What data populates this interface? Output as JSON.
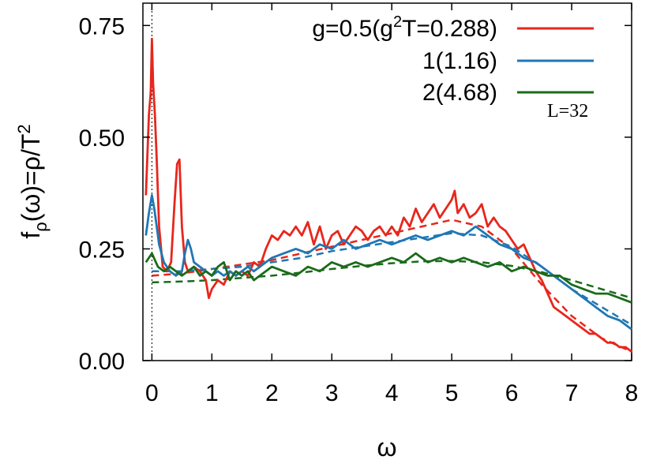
{
  "chart_data": {
    "type": "line",
    "xlabel": "ω",
    "ylabel": "f_ρ(ω)=ρ/T^2",
    "xlim": [
      -0.15,
      8.0
    ],
    "ylim": [
      0.0,
      0.8
    ],
    "xticks": [
      "0",
      "1",
      "2",
      "3",
      "4",
      "5",
      "6",
      "7",
      "8"
    ],
    "yticks": [
      "0.00",
      "0.25",
      "0.50",
      "0.75"
    ],
    "annotation": "L=32",
    "legend_position": "top-right",
    "grid": false,
    "reference_line": {
      "x": 0,
      "style": "dotted"
    },
    "series": [
      {
        "name": "g=0.5(g²T=0.288)",
        "color": "#e8261c",
        "x": [
          -0.1,
          -0.05,
          -0.02,
          0.0,
          0.02,
          0.05,
          0.08,
          0.12,
          0.18,
          0.25,
          0.32,
          0.38,
          0.42,
          0.46,
          0.5,
          0.55,
          0.6,
          0.7,
          0.8,
          0.9,
          0.95,
          1.0,
          1.1,
          1.2,
          1.3,
          1.4,
          1.5,
          1.6,
          1.7,
          1.8,
          1.9,
          2.0,
          2.1,
          2.2,
          2.3,
          2.4,
          2.5,
          2.6,
          2.7,
          2.8,
          2.9,
          3.0,
          3.1,
          3.2,
          3.3,
          3.4,
          3.5,
          3.6,
          3.7,
          3.8,
          3.9,
          4.0,
          4.1,
          4.2,
          4.3,
          4.4,
          4.5,
          4.6,
          4.7,
          4.8,
          4.9,
          5.0,
          5.05,
          5.1,
          5.2,
          5.3,
          5.4,
          5.5,
          5.6,
          5.7,
          5.8,
          5.9,
          6.0,
          6.1,
          6.2,
          6.3,
          6.4,
          6.5,
          6.6,
          6.7,
          6.8,
          6.9,
          7.0,
          7.1,
          7.2,
          7.3,
          7.4,
          7.5,
          7.6,
          7.7,
          7.8,
          7.9,
          8.0
        ],
        "values": [
          0.37,
          0.55,
          0.6,
          0.72,
          0.62,
          0.55,
          0.45,
          0.3,
          0.21,
          0.2,
          0.22,
          0.36,
          0.44,
          0.45,
          0.3,
          0.22,
          0.2,
          0.21,
          0.2,
          0.18,
          0.14,
          0.16,
          0.18,
          0.17,
          0.2,
          0.19,
          0.2,
          0.19,
          0.22,
          0.21,
          0.25,
          0.28,
          0.27,
          0.29,
          0.28,
          0.3,
          0.28,
          0.31,
          0.26,
          0.3,
          0.25,
          0.28,
          0.29,
          0.26,
          0.28,
          0.3,
          0.29,
          0.27,
          0.29,
          0.3,
          0.28,
          0.3,
          0.28,
          0.32,
          0.3,
          0.34,
          0.31,
          0.33,
          0.35,
          0.32,
          0.34,
          0.36,
          0.38,
          0.33,
          0.35,
          0.32,
          0.33,
          0.35,
          0.3,
          0.32,
          0.3,
          0.29,
          0.27,
          0.25,
          0.26,
          0.23,
          0.2,
          0.18,
          0.15,
          0.12,
          0.11,
          0.1,
          0.09,
          0.08,
          0.07,
          0.06,
          0.06,
          0.05,
          0.04,
          0.04,
          0.03,
          0.03,
          0.02
        ]
      },
      {
        "name": "1(1.16)",
        "color": "#1f77b4",
        "x": [
          -0.1,
          -0.05,
          0.0,
          0.04,
          0.08,
          0.12,
          0.2,
          0.3,
          0.4,
          0.5,
          0.55,
          0.6,
          0.65,
          0.7,
          0.8,
          0.9,
          1.0,
          1.1,
          1.2,
          1.3,
          1.4,
          1.5,
          1.6,
          1.7,
          1.8,
          1.9,
          2.0,
          2.2,
          2.4,
          2.6,
          2.8,
          3.0,
          3.2,
          3.4,
          3.6,
          3.8,
          4.0,
          4.2,
          4.4,
          4.6,
          4.8,
          5.0,
          5.2,
          5.4,
          5.5,
          5.6,
          5.8,
          6.0,
          6.2,
          6.4,
          6.6,
          6.8,
          7.0,
          7.2,
          7.4,
          7.6,
          7.8,
          8.0
        ],
        "values": [
          0.28,
          0.33,
          0.37,
          0.34,
          0.3,
          0.26,
          0.22,
          0.2,
          0.19,
          0.2,
          0.24,
          0.27,
          0.25,
          0.22,
          0.21,
          0.2,
          0.19,
          0.2,
          0.19,
          0.2,
          0.19,
          0.2,
          0.21,
          0.2,
          0.21,
          0.22,
          0.23,
          0.24,
          0.25,
          0.24,
          0.26,
          0.25,
          0.27,
          0.25,
          0.26,
          0.27,
          0.26,
          0.27,
          0.28,
          0.27,
          0.28,
          0.29,
          0.28,
          0.3,
          0.29,
          0.28,
          0.26,
          0.25,
          0.23,
          0.22,
          0.2,
          0.18,
          0.16,
          0.14,
          0.12,
          0.1,
          0.09,
          0.07
        ]
      },
      {
        "name": "2(4.68)",
        "color": "#1a6b1a",
        "x": [
          -0.1,
          0.0,
          0.1,
          0.2,
          0.3,
          0.4,
          0.5,
          0.6,
          0.7,
          0.8,
          0.9,
          1.0,
          1.1,
          1.2,
          1.3,
          1.4,
          1.5,
          1.6,
          1.7,
          1.8,
          1.9,
          2.0,
          2.2,
          2.4,
          2.6,
          2.8,
          3.0,
          3.2,
          3.4,
          3.6,
          3.8,
          4.0,
          4.2,
          4.4,
          4.6,
          4.8,
          5.0,
          5.2,
          5.4,
          5.6,
          5.8,
          6.0,
          6.2,
          6.4,
          6.6,
          6.8,
          7.0,
          7.2,
          7.4,
          7.6,
          7.8,
          8.0
        ],
        "values": [
          0.22,
          0.24,
          0.21,
          0.2,
          0.21,
          0.2,
          0.19,
          0.2,
          0.21,
          0.19,
          0.2,
          0.19,
          0.21,
          0.22,
          0.18,
          0.2,
          0.19,
          0.2,
          0.18,
          0.19,
          0.2,
          0.21,
          0.2,
          0.19,
          0.21,
          0.2,
          0.22,
          0.21,
          0.22,
          0.21,
          0.22,
          0.23,
          0.22,
          0.24,
          0.22,
          0.23,
          0.22,
          0.23,
          0.22,
          0.21,
          0.22,
          0.2,
          0.21,
          0.2,
          0.19,
          0.19,
          0.17,
          0.16,
          0.15,
          0.15,
          0.14,
          0.13
        ]
      }
    ],
    "fits": [
      {
        "color": "#e8261c",
        "x": [
          0.0,
          0.5,
          1.0,
          1.5,
          2.0,
          2.5,
          3.0,
          3.5,
          4.0,
          4.5,
          5.0,
          5.5,
          6.0,
          6.5,
          7.0,
          7.5,
          8.0
        ],
        "values": [
          0.19,
          0.195,
          0.205,
          0.215,
          0.225,
          0.24,
          0.255,
          0.27,
          0.285,
          0.3,
          0.315,
          0.3,
          0.25,
          0.17,
          0.1,
          0.05,
          0.02
        ]
      },
      {
        "color": "#1f77b4",
        "x": [
          0.0,
          0.5,
          1.0,
          1.5,
          2.0,
          2.5,
          3.0,
          3.5,
          4.0,
          4.5,
          5.0,
          5.5,
          6.0,
          6.5,
          7.0,
          7.5,
          8.0
        ],
        "values": [
          0.2,
          0.2,
          0.205,
          0.21,
          0.22,
          0.23,
          0.245,
          0.255,
          0.265,
          0.275,
          0.285,
          0.28,
          0.255,
          0.21,
          0.16,
          0.12,
          0.08
        ]
      },
      {
        "color": "#1a6b1a",
        "x": [
          0.0,
          0.5,
          1.0,
          1.5,
          2.0,
          2.5,
          3.0,
          3.5,
          4.0,
          4.5,
          5.0,
          5.5,
          6.0,
          6.5,
          7.0,
          7.5,
          8.0
        ],
        "values": [
          0.175,
          0.177,
          0.18,
          0.185,
          0.19,
          0.197,
          0.205,
          0.212,
          0.218,
          0.222,
          0.223,
          0.22,
          0.212,
          0.198,
          0.18,
          0.16,
          0.14
        ]
      }
    ]
  }
}
